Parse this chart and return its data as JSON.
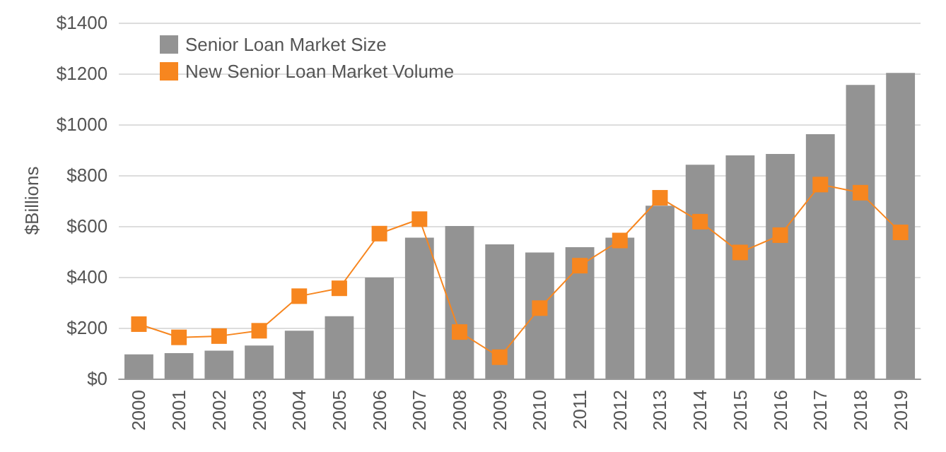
{
  "chart_data": {
    "type": "bar",
    "ylabel": "$Billions",
    "categories": [
      "2000",
      "2001",
      "2002",
      "2003",
      "2004",
      "2005",
      "2006",
      "2007",
      "2008",
      "2009",
      "2010",
      "2011",
      "2012",
      "2013",
      "2014",
      "2015",
      "2016",
      "2017",
      "2018",
      "2019"
    ],
    "series": [
      {
        "name": "Senior Loan Market Size",
        "color": "#939393",
        "values": [
          95,
          100,
          110,
          130,
          188,
          245,
          397,
          554,
          600,
          528,
          496,
          517,
          554,
          680,
          841,
          878,
          883,
          961,
          1155,
          1202
        ]
      },
      {
        "name": "New Senior Loan Market Volume",
        "type": "line",
        "color": "#f7861f",
        "marker": "square",
        "values": [
          214,
          162,
          167,
          188,
          324,
          355,
          570,
          627,
          183,
          84,
          277,
          444,
          543,
          711,
          617,
          496,
          564,
          763,
          731,
          575
        ]
      }
    ],
    "ylim": [
      0,
      1400
    ],
    "yticks": [
      {
        "value": 0,
        "label": "$0"
      },
      {
        "value": 200,
        "label": "$200"
      },
      {
        "value": 400,
        "label": "$400"
      },
      {
        "value": 600,
        "label": "$600"
      },
      {
        "value": 800,
        "label": "$800"
      },
      {
        "value": 1000,
        "label": "$1000"
      },
      {
        "value": 1200,
        "label": "$1200"
      },
      {
        "value": 1400,
        "label": "$1400"
      }
    ],
    "grid": "y",
    "legend": "top left"
  }
}
